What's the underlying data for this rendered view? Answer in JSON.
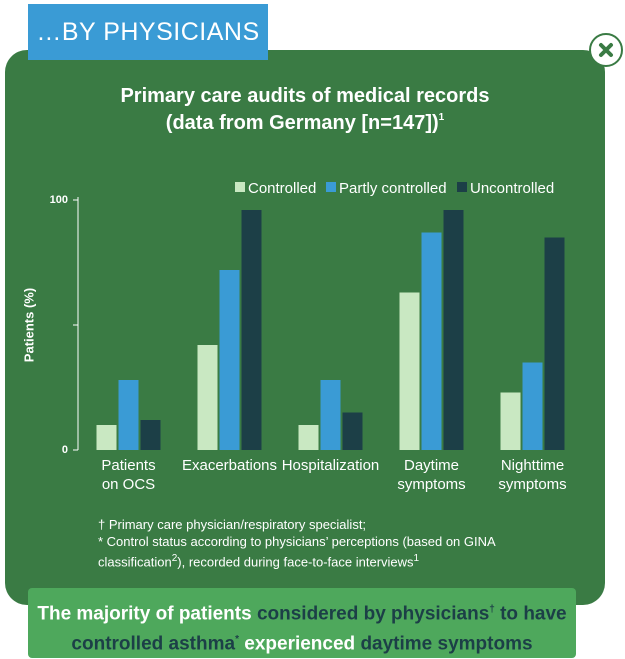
{
  "header": "…BY PHYSICIANS",
  "chart_data": {
    "type": "bar",
    "title": [
      "Primary care audits of medical records",
      "(data from Germany [n=147])"
    ],
    "title_sup": "1",
    "y_label": "Patients (%)",
    "categories": [
      [
        "Patients",
        "on OCS"
      ],
      [
        "Exacerbations"
      ],
      [
        "Hospitalization"
      ],
      [
        "Daytime",
        "symptoms"
      ],
      [
        "Nighttime",
        "symptoms"
      ]
    ],
    "series": [
      {
        "name": "Controlled",
        "color": "#c9e8c2",
        "values": [
          10,
          42,
          10,
          63,
          23
        ]
      },
      {
        "name": "Partly controlled",
        "color": "#3a9bd5",
        "values": [
          28,
          72,
          28,
          87,
          35
        ]
      },
      {
        "name": "Uncontrolled",
        "color": "#1c3f47",
        "values": [
          12,
          96,
          15,
          96,
          85
        ]
      }
    ],
    "ylim": [
      0,
      100
    ],
    "yticks": [
      0,
      100
    ],
    "minor_yticks": [
      50
    ]
  },
  "footnotes": [
    [
      {
        "text": "† Primary care physician/respiratory specialist;"
      }
    ],
    [
      {
        "text": "* Control status according to physicians’ perceptions (based on GINA"
      }
    ],
    [
      {
        "text": "classification"
      },
      {
        "text": "2",
        "sup": true
      },
      {
        "text": "), recorded during face-to-face interviews"
      },
      {
        "text": "1",
        "sup": true
      }
    ]
  ],
  "banner": [
    [
      {
        "text": "The majority of patients ",
        "color": "#ffffff"
      },
      {
        "text": "considered by physicians",
        "color": "#1c3f47"
      },
      {
        "text": "†",
        "color": "#1c3f47",
        "sup": true
      },
      {
        "text": " to have",
        "color": "#1c3f47"
      }
    ],
    [
      {
        "text": "controlled asthma",
        "color": "#1c3f47"
      },
      {
        "text": "*",
        "color": "#1c3f47",
        "sup": true
      },
      {
        "text": " experienced ",
        "color": "#ffffff"
      },
      {
        "text": "daytime symptoms",
        "color": "#1c3f47"
      }
    ]
  ]
}
